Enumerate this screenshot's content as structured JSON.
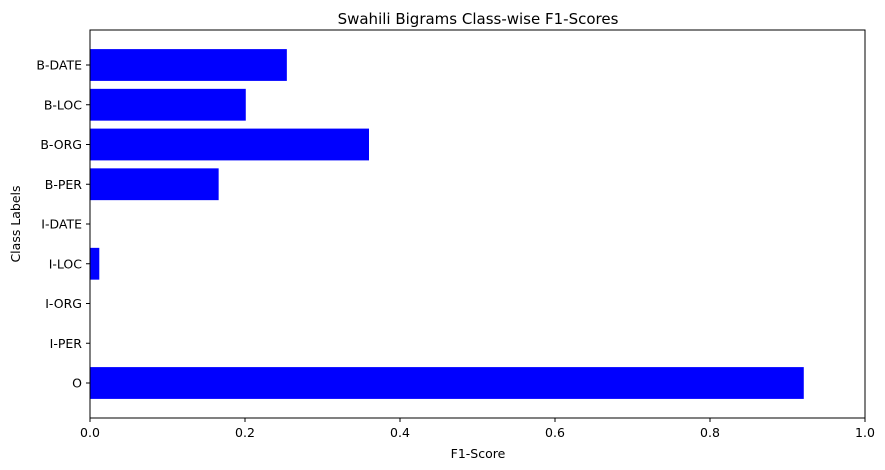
{
  "chart_data": {
    "type": "bar",
    "orientation": "horizontal",
    "title": "Swahili Bigrams Class-wise F1-Scores",
    "xlabel": "F1-Score",
    "ylabel": "Class Labels",
    "categories": [
      "O",
      "I-PER",
      "I-ORG",
      "I-LOC",
      "I-DATE",
      "B-PER",
      "B-ORG",
      "B-LOC",
      "B-DATE"
    ],
    "values": [
      0.921,
      0,
      0,
      0.012,
      0,
      0.166,
      0.36,
      0.201,
      0.254
    ],
    "xlim": [
      0,
      1.0
    ],
    "xticks": [
      "0.0",
      "0.2",
      "0.4",
      "0.6",
      "0.8",
      "1.0"
    ],
    "bar_color": "#0000ff",
    "grid": false,
    "legend": "none"
  }
}
